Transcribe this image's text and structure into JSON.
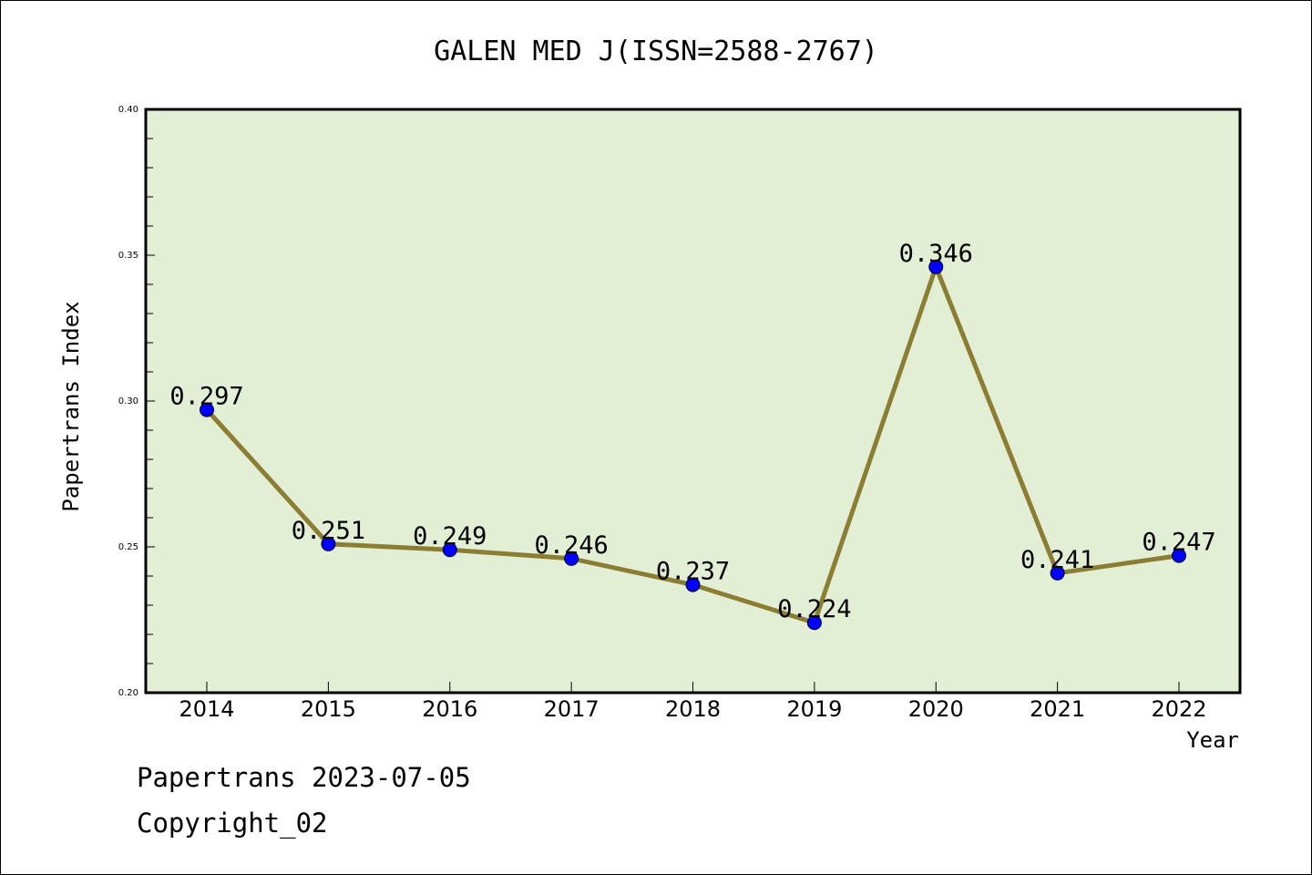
{
  "chart_data": {
    "type": "line",
    "title": "GALEN MED J(ISSN=2588-2767)",
    "xlabel": "Year",
    "ylabel": "Papertrans Index",
    "categories": [
      "2014",
      "2015",
      "2016",
      "2017",
      "2018",
      "2019",
      "2020",
      "2021",
      "2022"
    ],
    "values": [
      0.297,
      0.251,
      0.249,
      0.246,
      0.237,
      0.224,
      0.346,
      0.241,
      0.247
    ],
    "data_labels": [
      "0.297",
      "0.251",
      "0.249",
      "0.246",
      "0.237",
      "0.224",
      "0.346",
      "0.241",
      "0.247"
    ],
    "ylim": [
      0.2,
      0.4
    ],
    "y_ticks": [
      "0.20",
      "0.25",
      "0.30",
      "0.35",
      "0.40"
    ],
    "grid": false,
    "legend": "none",
    "colors": {
      "plot_background": "#e2efd5",
      "line": "#8b7d32",
      "marker": "#0000ff"
    }
  },
  "footer": {
    "line1": "Papertrans 2023-07-05",
    "line2": "Copyright_02"
  }
}
